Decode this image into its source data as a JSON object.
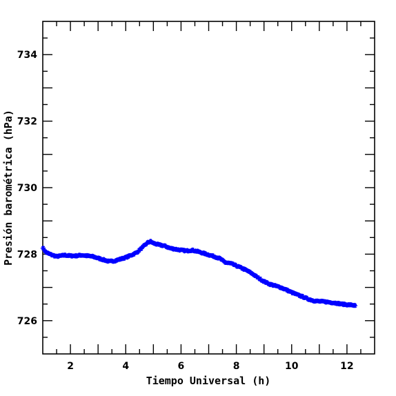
{
  "chart_data": {
    "type": "scatter",
    "title": "",
    "xlabel": "Tiempo Universal (h)",
    "ylabel": "Presión barométrica (hPa)",
    "xlim": [
      1.0,
      13.0
    ],
    "ylim": [
      725.0,
      735.0
    ],
    "x_ticks": [
      2,
      4,
      6,
      8,
      10,
      12
    ],
    "y_ticks": [
      726,
      728,
      730,
      732,
      734
    ],
    "x_tick_labels": [
      "2",
      "4",
      "6",
      "8",
      "10",
      "12"
    ],
    "y_tick_labels": [
      "726",
      "728",
      "730",
      "732",
      "734"
    ],
    "grid": false,
    "marker": "asterisk",
    "color": "#0000ff",
    "series": [
      {
        "x": [
          1.0,
          1.1,
          1.2,
          1.35,
          1.5,
          1.65,
          1.8,
          2.0,
          2.2,
          2.4,
          2.6,
          2.8,
          3.0,
          3.2,
          3.4,
          3.6,
          3.8,
          4.0,
          4.2,
          4.4,
          4.6,
          4.8,
          4.9,
          5.0,
          5.2,
          5.4,
          5.6,
          5.8,
          6.0,
          6.2,
          6.4,
          6.6,
          6.8,
          7.0,
          7.2,
          7.4,
          7.6,
          7.8,
          8.0,
          8.2,
          8.4,
          8.6,
          8.8,
          9.0,
          9.2,
          9.4,
          9.6,
          9.8,
          10.0,
          10.2,
          10.4,
          10.6,
          10.8,
          11.0,
          11.2,
          11.4,
          11.6,
          11.8,
          12.0,
          12.2,
          12.3
        ],
        "y": [
          728.2,
          728.07,
          728.02,
          727.97,
          727.93,
          727.95,
          727.97,
          727.95,
          727.95,
          727.97,
          727.95,
          727.93,
          727.88,
          727.83,
          727.78,
          727.8,
          727.85,
          727.9,
          727.97,
          728.05,
          728.2,
          728.35,
          728.38,
          728.33,
          728.28,
          728.25,
          728.18,
          728.15,
          728.12,
          728.1,
          728.12,
          728.08,
          728.03,
          727.98,
          727.93,
          727.87,
          727.75,
          727.72,
          727.65,
          727.58,
          727.5,
          727.4,
          727.28,
          727.18,
          727.1,
          727.05,
          727.0,
          726.93,
          726.85,
          726.78,
          726.72,
          726.65,
          726.6,
          726.58,
          726.57,
          726.55,
          726.53,
          726.5,
          726.48,
          726.47,
          726.45
        ]
      }
    ]
  }
}
